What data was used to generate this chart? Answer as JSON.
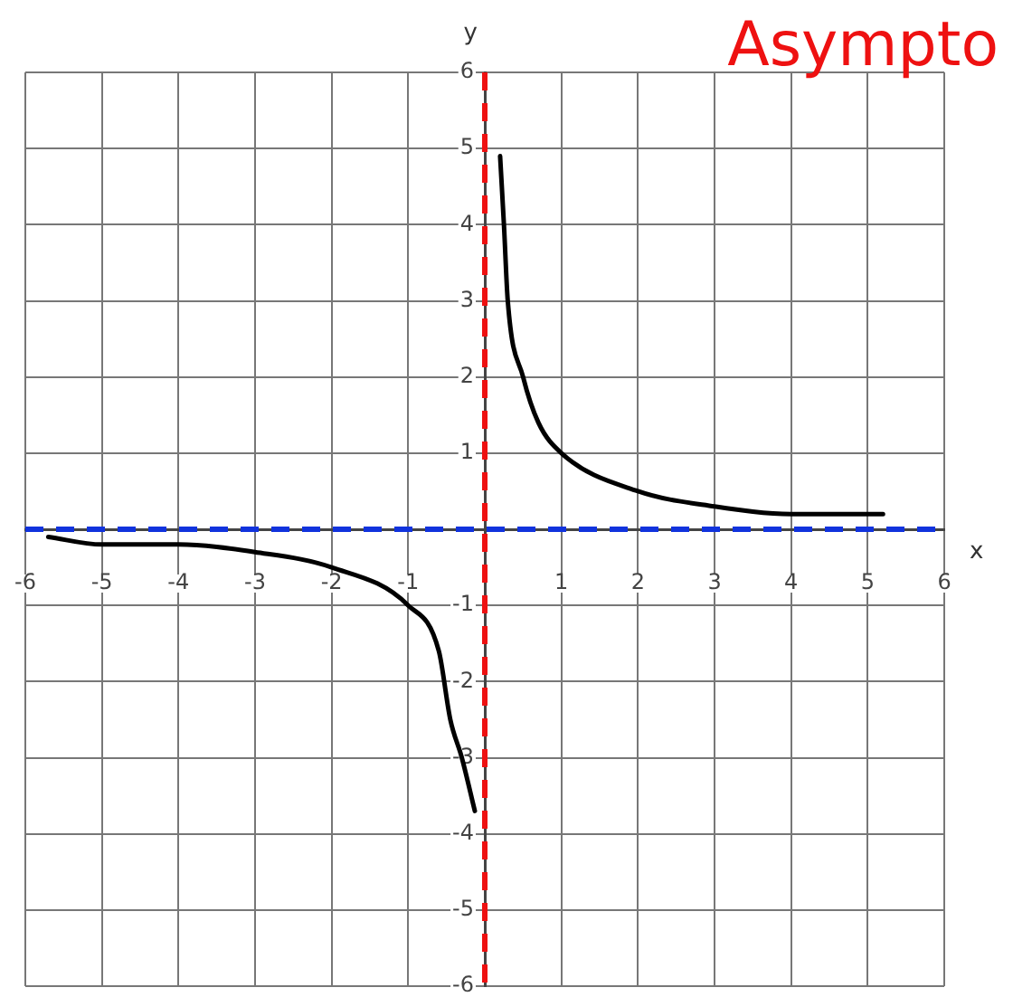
{
  "chart_data": {
    "type": "line",
    "xlabel": "x",
    "ylabel": "y",
    "annotations": [
      "Asympto"
    ],
    "series": [
      {
        "color": "#000000",
        "x": [
          0.2,
          0.25,
          0.3,
          0.5,
          0.7,
          1,
          2,
          3,
          4,
          5.2
        ],
        "values": [
          4.9,
          4,
          3,
          2,
          1.4,
          1,
          0.5,
          0.3,
          0.2,
          0.2
        ]
      },
      {
        "color": "#000000",
        "x": [
          -5.7,
          -5,
          -4,
          -3,
          -2,
          -1,
          -0.6,
          -0.45,
          -0.3,
          -0.13
        ],
        "values": [
          -0.1,
          -0.2,
          -0.2,
          -0.3,
          -0.5,
          -1,
          -1.6,
          -2.5,
          -3,
          -3.7
        ]
      }
    ],
    "xlim": [
      -6,
      6
    ],
    "ylim": [
      -6,
      6
    ],
    "xticks": [
      -6,
      -5,
      -4,
      -3,
      -2,
      -1,
      1,
      2,
      3,
      4,
      5,
      6
    ],
    "yticks": [
      -6,
      -5,
      -4,
      -3,
      -2,
      -1,
      1,
      2,
      3,
      4,
      5,
      6
    ],
    "ref_lines": [
      {
        "axis": "x",
        "value": 0,
        "label": null,
        "color": "#ee1111",
        "line_style": "dashed"
      },
      {
        "axis": "y",
        "value": 0,
        "label": null,
        "color": "#1133dd",
        "line_style": "dashed"
      }
    ],
    "grid": true,
    "legend": false,
    "marker": "none",
    "line_style": "solid"
  }
}
